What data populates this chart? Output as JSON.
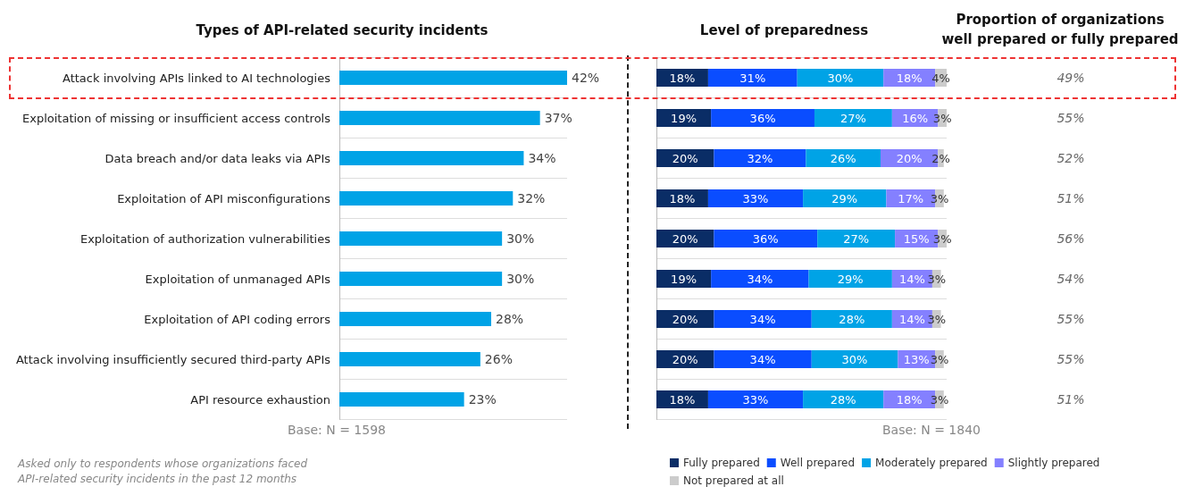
{
  "chart_data": [
    {
      "type": "bar",
      "orientation": "horizontal",
      "title": "Types of API-related security incidents",
      "categories": [
        "Attack involving APIs linked to AI technologies",
        "Exploitation of missing or insufficient access controls",
        "Data breach and/or data leaks via APIs",
        "Exploitation of API misconfigurations",
        "Exploitation of authorization vulnerabilities",
        "Exploitation of unmanaged APIs",
        "Exploitation of API coding errors",
        "Attack involving insufficiently secured third-party APIs",
        "API resource exhaustion"
      ],
      "values": [
        42,
        37,
        34,
        32,
        30,
        30,
        28,
        26,
        23
      ],
      "value_labels": [
        "42%",
        "37%",
        "34%",
        "32%",
        "30%",
        "30%",
        "28%",
        "26%",
        "23%"
      ],
      "color": "#00a3e6",
      "grid": "y",
      "legend": false,
      "annotations": [
        "Base: N = 1598",
        "Asked only to respondents whose organizations faced\nAPI-related security incidents in the past 12 months"
      ]
    },
    {
      "type": "bar",
      "orientation": "horizontal",
      "stacked": true,
      "title": "Level of preparedness",
      "categories": [
        null,
        null,
        null,
        null,
        null,
        null,
        null,
        null,
        null
      ],
      "grid": "y",
      "legend": "bottom",
      "data_labels": true,
      "series": [
        {
          "name": "Fully prepared",
          "color": "#0a2d66",
          "values": [
            18,
            19,
            20,
            18,
            20,
            19,
            20,
            20,
            18
          ],
          "value_labels": [
            "18%",
            "19%",
            "20%",
            "18%",
            "20%",
            "19%",
            "20%",
            "20%",
            "18%"
          ]
        },
        {
          "name": "Well prepared",
          "color": "#0a4dff",
          "values": [
            31,
            36,
            32,
            33,
            36,
            34,
            34,
            34,
            33
          ],
          "value_labels": [
            "31%",
            "36%",
            "32%",
            "33%",
            "36%",
            "34%",
            "34%",
            "34%",
            "33%"
          ]
        },
        {
          "name": "Moderately prepared",
          "color": "#00a3e6",
          "values": [
            30,
            27,
            26,
            29,
            27,
            29,
            28,
            30,
            28
          ],
          "value_labels": [
            "30%",
            "27%",
            "26%",
            "29%",
            "27%",
            "29%",
            "28%",
            "30%",
            "28%"
          ]
        },
        {
          "name": "Slightly prepared",
          "color": "#8480ff",
          "values": [
            18,
            16,
            20,
            17,
            15,
            14,
            14,
            13,
            18
          ],
          "value_labels": [
            "18%",
            "16%",
            "20%",
            "17%",
            "15%",
            "14%",
            "14%",
            "13%",
            "18%"
          ]
        },
        {
          "name": "Not prepared at all",
          "color": "#cccccc",
          "values": [
            4,
            3,
            2,
            3,
            3,
            3,
            3,
            3,
            3
          ],
          "value_labels": [
            "4%",
            "3%",
            "2%",
            "3%",
            "3%",
            "3%",
            "3%",
            "3%",
            "3%"
          ]
        }
      ],
      "annotations": [
        "Base: N = 1840"
      ]
    },
    {
      "type": "other",
      "title": "Proportion of organizations\nwell prepared or fully prepared",
      "categories": [
        null,
        null,
        null,
        null,
        null,
        null,
        null,
        null,
        null
      ],
      "values": [
        49,
        55,
        52,
        51,
        56,
        54,
        55,
        55,
        51
      ],
      "value_labels": [
        "49%",
        "55%",
        "52%",
        "51%",
        "56%",
        "54%",
        "55%",
        "55%",
        "51%"
      ]
    }
  ]
}
